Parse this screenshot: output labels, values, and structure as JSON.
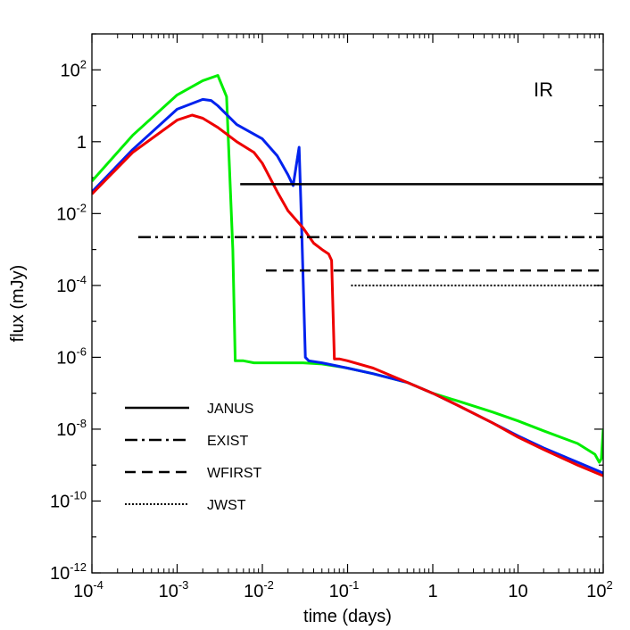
{
  "chart_data": {
    "type": "line",
    "title": "",
    "xlabel": "time (days)",
    "ylabel": "flux (mJy)",
    "xscale": "log",
    "yscale": "log",
    "xlim": [
      0.0001,
      100
    ],
    "ylim": [
      1e-12,
      1000
    ],
    "grid": false,
    "annotation": "IR",
    "x_ticks": [
      {
        "value": 0.0001,
        "base": "10",
        "exp": "-4"
      },
      {
        "value": 0.001,
        "base": "10",
        "exp": "-3"
      },
      {
        "value": 0.01,
        "base": "10",
        "exp": "-2"
      },
      {
        "value": 0.1,
        "base": "10",
        "exp": "-1"
      },
      {
        "value": 1,
        "base": "1",
        "exp": ""
      },
      {
        "value": 10,
        "base": "10",
        "exp": ""
      },
      {
        "value": 100,
        "base": "10",
        "exp": "2"
      }
    ],
    "y_ticks": [
      {
        "value": 1e-12,
        "base": "10",
        "exp": "-12"
      },
      {
        "value": 1e-10,
        "base": "10",
        "exp": "-10"
      },
      {
        "value": 1e-08,
        "base": "10",
        "exp": "-8"
      },
      {
        "value": 1e-06,
        "base": "10",
        "exp": "-6"
      },
      {
        "value": 0.0001,
        "base": "10",
        "exp": "-4"
      },
      {
        "value": 0.01,
        "base": "10",
        "exp": "-2"
      },
      {
        "value": 1,
        "base": "1",
        "exp": ""
      },
      {
        "value": 100,
        "base": "10",
        "exp": "2"
      }
    ],
    "legend_position": "bottom-left",
    "sensitivity_limits": [
      {
        "name": "JANUS",
        "dash": "solid",
        "flux": 0.066,
        "t_start": 0.0055,
        "t_end": 100
      },
      {
        "name": "EXIST",
        "dash": "dashdot",
        "flux": 0.0022,
        "t_start": 0.00035,
        "t_end": 100
      },
      {
        "name": "WFIRST",
        "dash": "dashed",
        "flux": 0.00026,
        "t_start": 0.011,
        "t_end": 100
      },
      {
        "name": "JWST",
        "dash": "dotted",
        "flux": 0.0001,
        "t_start": 0.11,
        "t_end": 100
      }
    ],
    "series": [
      {
        "color": "#00ee00",
        "x": [
          0.0001,
          0.0003,
          0.001,
          0.002,
          0.003,
          0.0038,
          0.0045,
          0.0048,
          0.006,
          0.008,
          0.01,
          0.015,
          0.02,
          0.03,
          0.05,
          0.08,
          0.1,
          0.2,
          0.5,
          1,
          2,
          5,
          10,
          20,
          50,
          80,
          90,
          95,
          100
        ],
        "y": [
          0.08,
          1.5,
          20,
          50,
          70,
          18,
          0.001,
          8e-07,
          8e-07,
          7e-07,
          7e-07,
          7e-07,
          7e-07,
          7e-07,
          6.5e-07,
          5.5e-07,
          5e-07,
          3.5e-07,
          2e-07,
          1e-07,
          6e-08,
          3e-08,
          1.7e-08,
          9e-09,
          4e-09,
          2e-09,
          1.2e-09,
          1.5e-09,
          1e-08
        ]
      },
      {
        "color": "#0022ee",
        "x": [
          0.0001,
          0.0003,
          0.001,
          0.002,
          0.0025,
          0.003,
          0.005,
          0.01,
          0.015,
          0.02,
          0.023,
          0.027,
          0.029,
          0.032,
          0.035,
          0.05,
          0.1,
          0.2,
          0.5,
          1,
          2,
          5,
          10,
          20,
          50,
          100
        ],
        "y": [
          0.04,
          0.6,
          8,
          15,
          14,
          10,
          3,
          1.2,
          0.4,
          0.12,
          0.06,
          0.7,
          0.003,
          1e-06,
          8e-07,
          7e-07,
          5e-07,
          3.5e-07,
          2e-07,
          1e-07,
          4.5e-08,
          1.5e-08,
          6.5e-09,
          3e-09,
          1.2e-09,
          6e-10
        ]
      },
      {
        "color": "#ee0000",
        "x": [
          0.0001,
          0.0003,
          0.001,
          0.0015,
          0.002,
          0.003,
          0.005,
          0.008,
          0.01,
          0.015,
          0.02,
          0.03,
          0.04,
          0.05,
          0.06,
          0.065,
          0.07,
          0.08,
          0.1,
          0.2,
          0.5,
          1,
          2,
          5,
          10,
          20,
          50,
          100
        ],
        "y": [
          0.035,
          0.5,
          4,
          5.5,
          4.5,
          2.5,
          1,
          0.5,
          0.25,
          0.04,
          0.012,
          0.004,
          0.0015,
          0.001,
          0.00075,
          0.0005,
          9e-07,
          9e-07,
          8e-07,
          5e-07,
          2e-07,
          1e-07,
          4.5e-08,
          1.5e-08,
          6e-09,
          2.7e-09,
          1e-09,
          5e-10
        ]
      }
    ]
  }
}
